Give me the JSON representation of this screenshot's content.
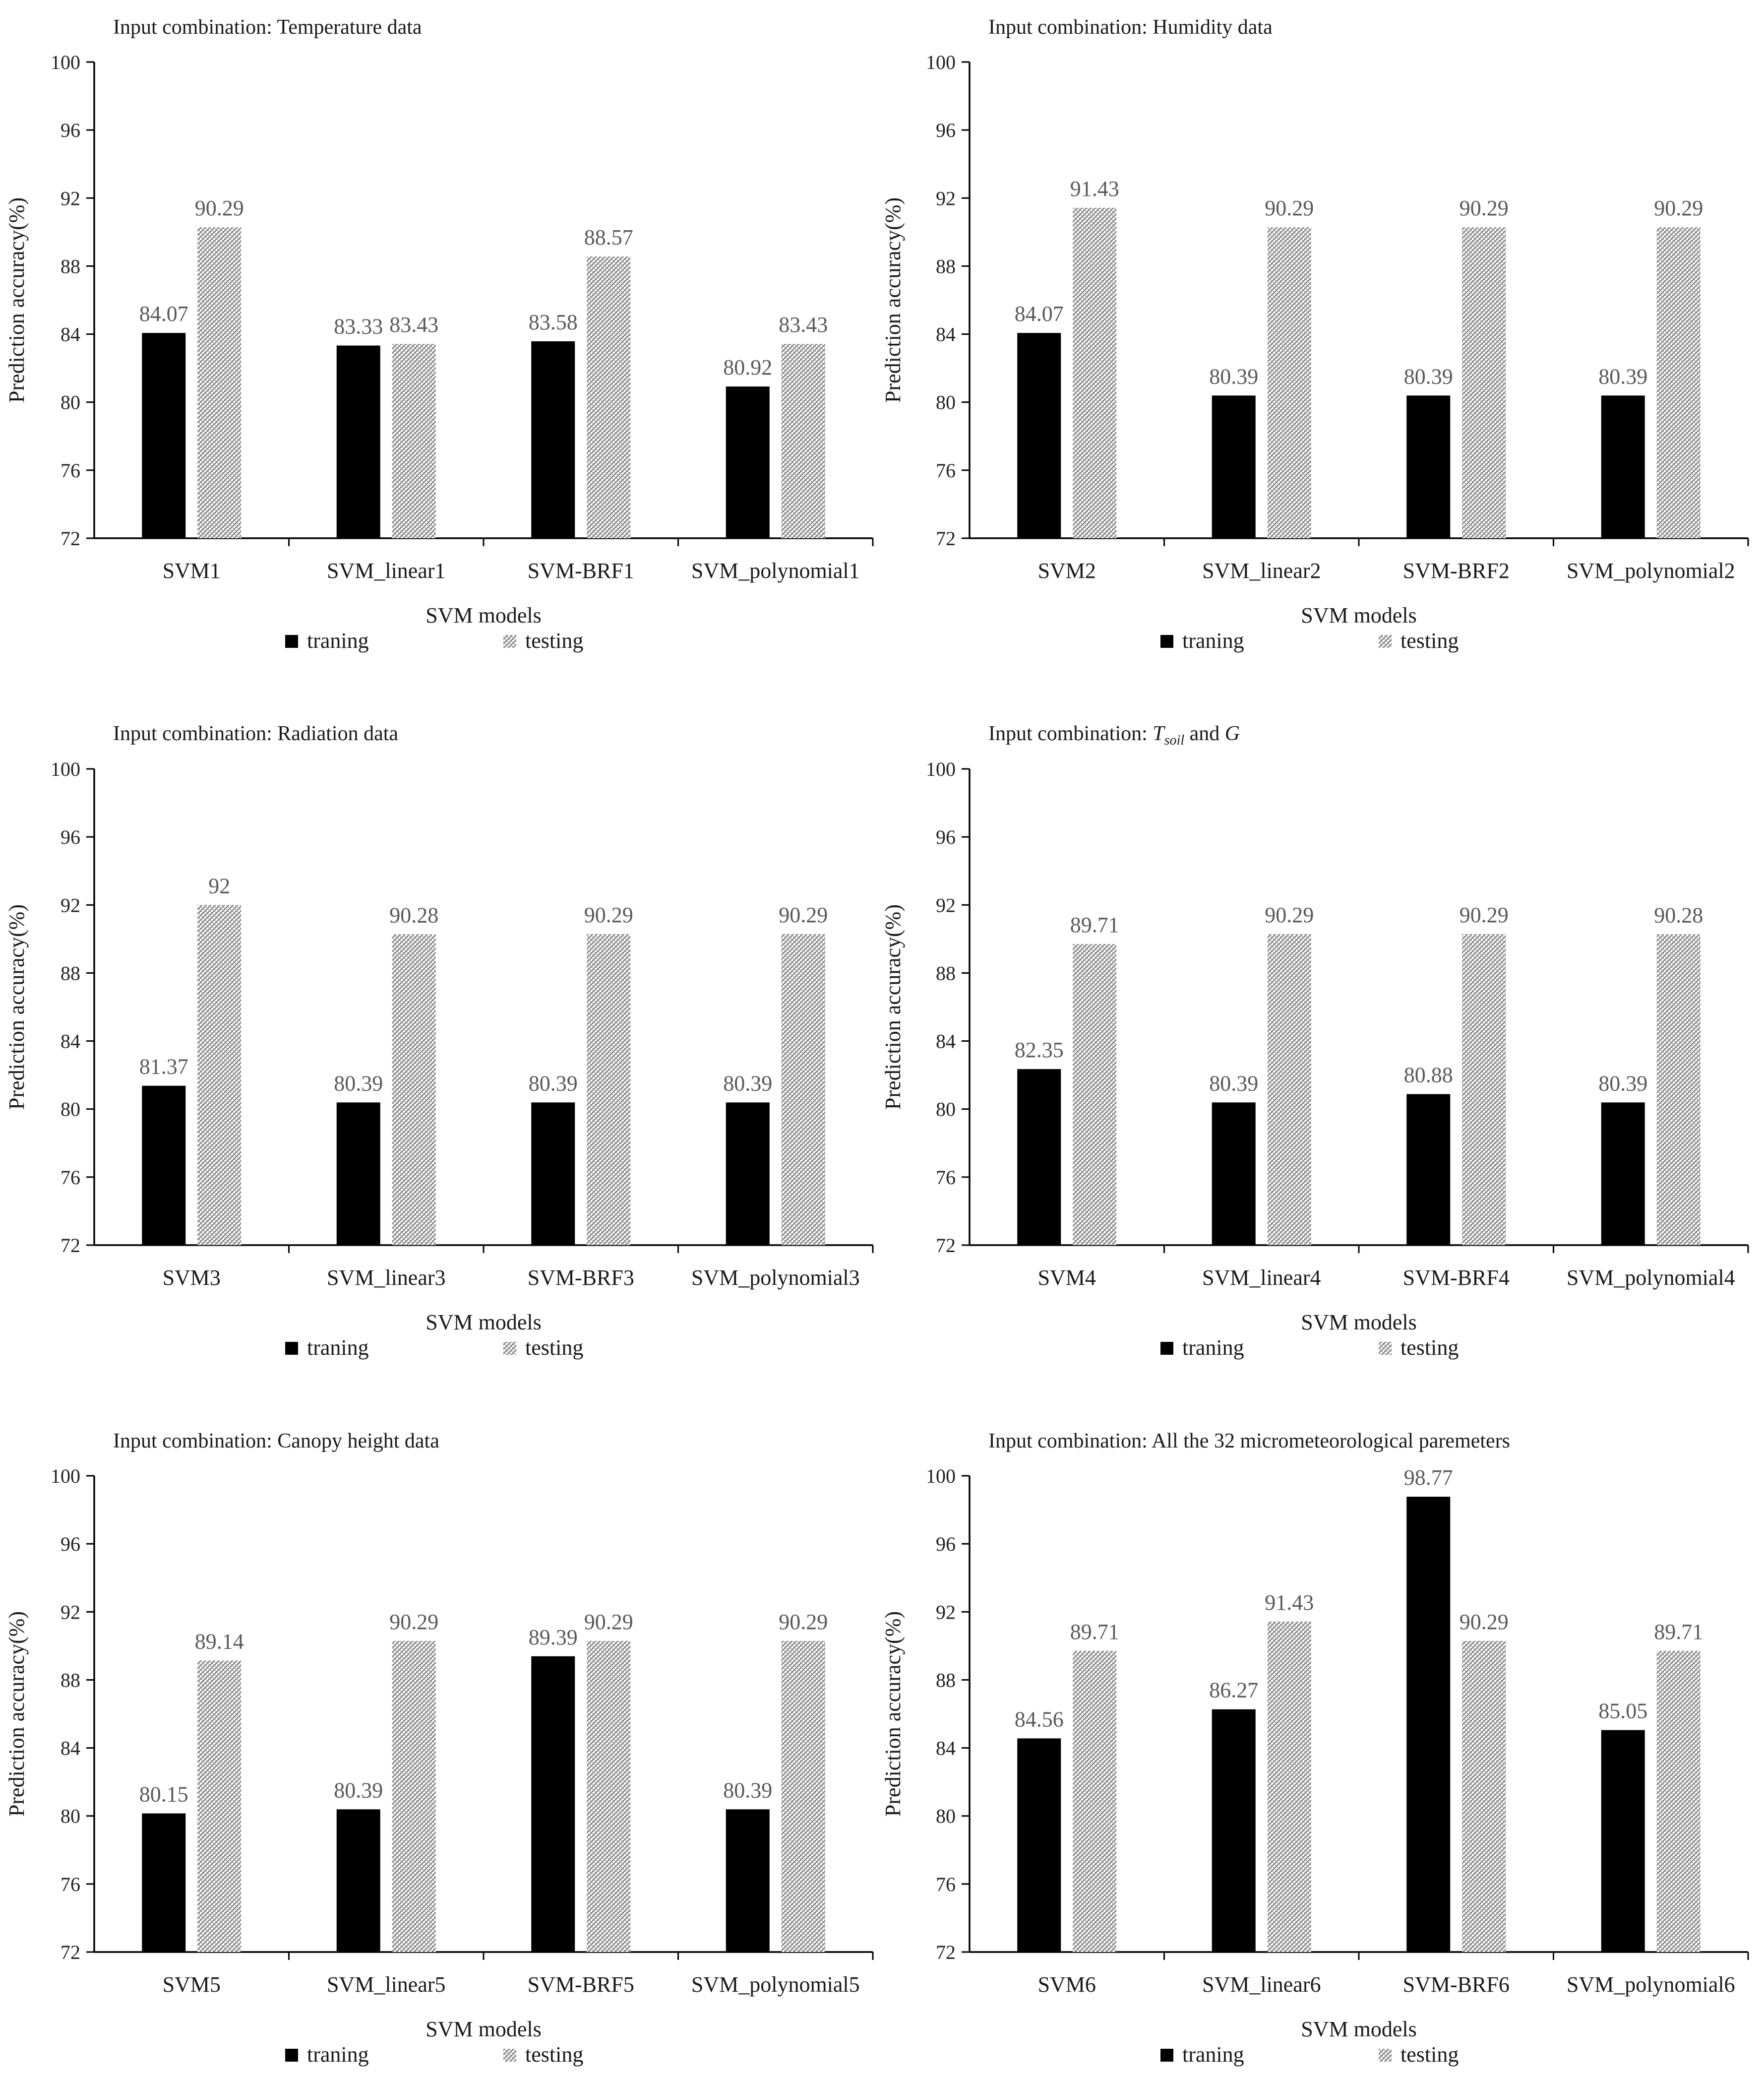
{
  "chart_data": [
    {
      "type": "bar",
      "title": "Input combination: Temperature data",
      "categories": [
        "SVM1",
        "SVM_linear1",
        "SVM-BRF1",
        "SVM_polynomial1"
      ],
      "series": [
        {
          "name": "traning",
          "values": [
            84.07,
            83.33,
            83.58,
            80.92
          ],
          "labels": [
            "84.07",
            "83.33",
            "83.58",
            "80.92"
          ],
          "color": "#000000"
        },
        {
          "name": "testing",
          "values": [
            90.29,
            83.43,
            88.57,
            83.43
          ],
          "labels": [
            "90.29",
            "83.43",
            "88.57",
            "83.43"
          ],
          "color": "#8c8c8c"
        }
      ],
      "xlabel": "SVM models",
      "ylabel": "Prediction accuracy(%)",
      "ylim": [
        72,
        100
      ],
      "yticks": [
        72,
        76,
        80,
        84,
        88,
        92,
        96,
        100
      ],
      "legend": "bottom"
    },
    {
      "type": "bar",
      "title": "Input combination: Humidity data",
      "categories": [
        "SVM2",
        "SVM_linear2",
        "SVM-BRF2",
        "SVM_polynomial2"
      ],
      "series": [
        {
          "name": "traning",
          "values": [
            84.07,
            80.39,
            80.39,
            80.39
          ],
          "labels": [
            "84.07",
            "80.39",
            "80.39",
            "80.39"
          ],
          "color": "#000000"
        },
        {
          "name": "testing",
          "values": [
            91.43,
            90.29,
            90.29,
            90.29
          ],
          "labels": [
            "91.43",
            "90.29",
            "90.29",
            "90.29"
          ],
          "color": "#8c8c8c"
        }
      ],
      "xlabel": "SVM models",
      "ylabel": "Prediction accuracy(%)",
      "ylim": [
        72,
        100
      ],
      "yticks": [
        72,
        76,
        80,
        84,
        88,
        92,
        96,
        100
      ],
      "legend": "bottom"
    },
    {
      "type": "bar",
      "title": "Input combination: Radiation data",
      "categories": [
        "SVM3",
        "SVM_linear3",
        "SVM-BRF3",
        "SVM_polynomial3"
      ],
      "series": [
        {
          "name": "traning",
          "values": [
            81.37,
            80.39,
            80.39,
            80.39
          ],
          "labels": [
            "81.37",
            "80.39",
            "80.39",
            "80.39"
          ],
          "color": "#000000"
        },
        {
          "name": "testing",
          "values": [
            92,
            90.28,
            90.29,
            90.29
          ],
          "labels": [
            "92",
            "90.28",
            "90.29",
            "90.29"
          ],
          "color": "#8c8c8c"
        }
      ],
      "xlabel": "SVM models",
      "ylabel": "Prediction accuracy(%)",
      "ylim": [
        72,
        100
      ],
      "yticks": [
        72,
        76,
        80,
        84,
        88,
        92,
        96,
        100
      ],
      "legend": "bottom"
    },
    {
      "type": "bar",
      "title": "Input combination: ",
      "title_parts": {
        "prefix": "Input combination: ",
        "var1": "T",
        "var1_sub": "soil",
        "mid": " and ",
        "var2": "G"
      },
      "categories": [
        "SVM4",
        "SVM_linear4",
        "SVM-BRF4",
        "SVM_polynomial4"
      ],
      "series": [
        {
          "name": "traning",
          "values": [
            82.35,
            80.39,
            80.88,
            80.39
          ],
          "labels": [
            "82.35",
            "80.39",
            "80.88",
            "80.39"
          ],
          "color": "#000000"
        },
        {
          "name": "testing",
          "values": [
            89.71,
            90.29,
            90.29,
            90.28
          ],
          "labels": [
            "89.71",
            "90.29",
            "90.29",
            "90.28"
          ],
          "color": "#8c8c8c"
        }
      ],
      "xlabel": "SVM models",
      "ylabel": "Prediction accuracy(%)",
      "ylim": [
        72,
        100
      ],
      "yticks": [
        72,
        76,
        80,
        84,
        88,
        92,
        96,
        100
      ],
      "legend": "bottom"
    },
    {
      "type": "bar",
      "title": "Input combination: Canopy height data",
      "categories": [
        "SVM5",
        "SVM_linear5",
        "SVM-BRF5",
        "SVM_polynomial5"
      ],
      "series": [
        {
          "name": "traning",
          "values": [
            80.15,
            80.39,
            89.39,
            80.39
          ],
          "labels": [
            "80.15",
            "80.39",
            "89.39",
            "80.39"
          ],
          "color": "#000000"
        },
        {
          "name": "testing",
          "values": [
            89.14,
            90.29,
            90.29,
            90.29
          ],
          "labels": [
            "89.14",
            "90.29",
            "90.29",
            "90.29"
          ],
          "color": "#8c8c8c"
        }
      ],
      "xlabel": "SVM models",
      "ylabel": "Prediction accuracy(%)",
      "ylim": [
        72,
        100
      ],
      "yticks": [
        72,
        76,
        80,
        84,
        88,
        92,
        96,
        100
      ],
      "legend": "bottom"
    },
    {
      "type": "bar",
      "title": "Input combination: All the 32 micrometeorological paremeters",
      "categories": [
        "SVM6",
        "SVM_linear6",
        "SVM-BRF6",
        "SVM_polynomial6"
      ],
      "series": [
        {
          "name": "traning",
          "values": [
            84.56,
            86.27,
            98.77,
            85.05
          ],
          "labels": [
            "84.56",
            "86.27",
            "98.77",
            "85.05"
          ],
          "color": "#000000"
        },
        {
          "name": "testing",
          "values": [
            89.71,
            91.43,
            90.29,
            89.71
          ],
          "labels": [
            "89.71",
            "91.43",
            "90.29",
            "89.71"
          ],
          "color": "#8c8c8c"
        }
      ],
      "xlabel": "SVM models",
      "ylabel": "Prediction accuracy(%)",
      "ylim": [
        72,
        100
      ],
      "yticks": [
        72,
        76,
        80,
        84,
        88,
        92,
        96,
        100
      ],
      "legend": "bottom"
    }
  ]
}
